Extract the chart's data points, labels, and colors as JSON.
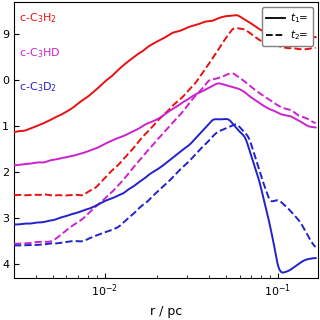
{
  "xlabel": "r / pc",
  "xmin": 0.003,
  "xmax": 0.17,
  "ymin": -14.3,
  "ymax": -8.3,
  "yticks": [
    -9,
    -10,
    -11,
    -12,
    -13,
    -14
  ],
  "ytick_labels": [
    "9",
    "0",
    "1",
    "2",
    "3",
    "4"
  ],
  "colors": {
    "c3h2": "#e81010",
    "c3hd": "#cc22cc",
    "c3d2": "#2222cc"
  },
  "figsize": [
    3.2,
    3.2
  ],
  "dpi": 100
}
